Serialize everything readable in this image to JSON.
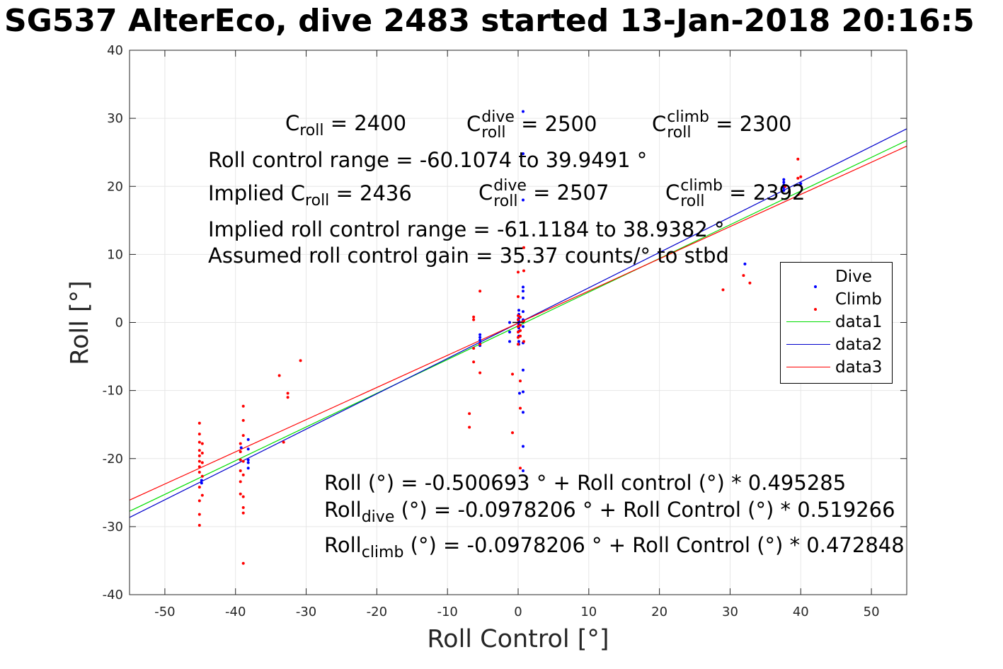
{
  "title": "SG537 AlterEco, dive 2483 started 13-Jan-2018 20:16:5",
  "colors": {
    "dive": "#0000ff",
    "climb": "#ff0000",
    "data1": "#00dd00",
    "data2": "#0000cc",
    "data3": "#ff0000"
  },
  "annotations": {
    "c_roll": {
      "label": "C",
      "sub": "roll",
      "value": " = 2400"
    },
    "c_roll_dive": {
      "label": "C",
      "sup": "dive",
      "sub": "roll",
      "value": " = 2500"
    },
    "c_roll_climb": {
      "label": "C",
      "sup": "climb",
      "sub": "roll",
      "value": " = 2300"
    },
    "roll_control_range": "Roll control range = -60.1074 to 39.9491 °",
    "implied_c_roll": {
      "label": "Implied C",
      "sub": "roll",
      "value": " = 2436"
    },
    "implied_c_roll_dive": {
      "label": "C",
      "sup": "dive",
      "sub": "roll",
      "value": " = 2507"
    },
    "implied_c_roll_climb": {
      "label": "C",
      "sup": "climb",
      "sub": "roll",
      "value": " = 2392"
    },
    "implied_range": "Implied roll control range = -61.1184 to 38.9382 °",
    "gain": "Assumed roll control gain = 35.37 counts/° to stbd",
    "fit_all": "Roll (°) = -0.500693 ° + Roll control (°) * 0.495285",
    "fit_dive": {
      "label": "Roll",
      "sub": "dive",
      "value": " (°) = -0.0978206 ° + Roll Control (°) * 0.519266"
    },
    "fit_climb": {
      "label": "Roll",
      "sub": "climb",
      "value": " (°) = -0.0978206 ° + Roll Control (°) * 0.472848"
    }
  },
  "legend": {
    "dive": "Dive",
    "climb": "Climb",
    "data1": "data1",
    "data2": "data2",
    "data3": "data3"
  },
  "chart_data": {
    "type": "scatter",
    "xlabel": "Roll Control [°]",
    "ylabel": "Roll [°]",
    "xlim": [
      -55,
      55
    ],
    "ylim": [
      -40,
      40
    ],
    "xticks": [
      -50,
      -40,
      -30,
      -20,
      -10,
      0,
      10,
      20,
      30,
      40,
      50
    ],
    "yticks": [
      -40,
      -30,
      -20,
      -10,
      0,
      10,
      20,
      30,
      40
    ],
    "grid": true,
    "legend_position": "right",
    "series": [
      {
        "name": "Dive",
        "mode": "markers",
        "points": [
          [
            -44.8,
            -23.2
          ],
          [
            -44.8,
            -23.6
          ],
          [
            -38.2,
            -17.2
          ],
          [
            -38.2,
            -18.6
          ],
          [
            -38.2,
            -20.2
          ],
          [
            -38.2,
            -20.6
          ],
          [
            -38.2,
            -21.4
          ],
          [
            -39.2,
            -18.4
          ],
          [
            -5.4,
            -1.8
          ],
          [
            -5.4,
            -2.2
          ],
          [
            -5.4,
            -2.6
          ],
          [
            -5.4,
            -3.0
          ],
          [
            -5.4,
            -3.4
          ],
          [
            -1.2,
            0.0
          ],
          [
            -1.2,
            -1.4
          ],
          [
            -1.2,
            -2.8
          ],
          [
            0.1,
            1.8
          ],
          [
            0.1,
            1.2
          ],
          [
            0.1,
            0.6
          ],
          [
            0.1,
            0.2
          ],
          [
            0.1,
            -0.3
          ],
          [
            0.1,
            -0.8
          ],
          [
            0.1,
            -1.3
          ],
          [
            0.1,
            -2.0
          ],
          [
            0.1,
            -2.8
          ],
          [
            0.1,
            -3.2
          ],
          [
            0.7,
            31.0
          ],
          [
            0.7,
            24.8
          ],
          [
            0.7,
            18.0
          ],
          [
            0.7,
            5.2
          ],
          [
            0.7,
            4.6
          ],
          [
            0.7,
            3.6
          ],
          [
            0.7,
            1.6
          ],
          [
            0.7,
            0.4
          ],
          [
            0.7,
            -0.6
          ],
          [
            0.7,
            -3.0
          ],
          [
            0.7,
            -7.0
          ],
          [
            0.7,
            -10.2
          ],
          [
            0.7,
            -13.2
          ],
          [
            0.7,
            -18.2
          ],
          [
            0.7,
            -21.8
          ],
          [
            0.2,
            -10.4
          ],
          [
            37.6,
            21.0
          ],
          [
            37.6,
            20.6
          ],
          [
            37.6,
            20.2
          ],
          [
            37.6,
            19.8
          ],
          [
            37.6,
            19.4
          ],
          [
            32.1,
            8.6
          ],
          [
            40.0,
            20.4
          ]
        ]
      },
      {
        "name": "Climb",
        "mode": "markers",
        "points": [
          [
            -45.1,
            -14.8
          ],
          [
            -45.1,
            -16.4
          ],
          [
            -45.1,
            -17.6
          ],
          [
            -45.1,
            -18.8
          ],
          [
            -45.1,
            -19.6
          ],
          [
            -45.1,
            -20.4
          ],
          [
            -45.1,
            -21.2
          ],
          [
            -45.1,
            -22.0
          ],
          [
            -45.1,
            -24.2
          ],
          [
            -45.1,
            -26.2
          ],
          [
            -45.1,
            -28.2
          ],
          [
            -45.1,
            -29.8
          ],
          [
            -44.7,
            -17.8
          ],
          [
            -44.7,
            -19.2
          ],
          [
            -44.7,
            -20.6
          ],
          [
            -44.7,
            -22.6
          ],
          [
            -44.7,
            -25.4
          ],
          [
            -39.3,
            -17.8
          ],
          [
            -39.3,
            -19.0
          ],
          [
            -39.3,
            -20.2
          ],
          [
            -39.3,
            -21.8
          ],
          [
            -39.3,
            -23.4
          ],
          [
            -39.3,
            -25.2
          ],
          [
            -38.9,
            -12.3
          ],
          [
            -38.9,
            -14.4
          ],
          [
            -38.9,
            -16.6
          ],
          [
            -38.9,
            -20.4
          ],
          [
            -38.9,
            -22.4
          ],
          [
            -38.9,
            -25.6
          ],
          [
            -38.9,
            -27.2
          ],
          [
            -38.9,
            -28.0
          ],
          [
            -38.9,
            -35.4
          ],
          [
            -33.8,
            -7.8
          ],
          [
            -33.2,
            -17.6
          ],
          [
            -32.6,
            -10.4
          ],
          [
            -32.6,
            -11.0
          ],
          [
            -30.8,
            -5.6
          ],
          [
            -6.3,
            0.8
          ],
          [
            -6.3,
            0.4
          ],
          [
            -6.3,
            -3.8
          ],
          [
            -6.3,
            -5.8
          ],
          [
            -6.9,
            -13.4
          ],
          [
            -6.9,
            -15.4
          ],
          [
            -5.4,
            4.6
          ],
          [
            -5.4,
            -7.4
          ],
          [
            -5.4,
            -3.2
          ],
          [
            -0.8,
            -7.6
          ],
          [
            -0.8,
            -16.2
          ],
          [
            0.0,
            7.4
          ],
          [
            0.0,
            3.8
          ],
          [
            0.0,
            1.0
          ],
          [
            0.0,
            0.4
          ],
          [
            0.0,
            -0.6
          ],
          [
            0.0,
            -1.4
          ],
          [
            0.0,
            -2.2
          ],
          [
            0.0,
            -3.2
          ],
          [
            0.3,
            0.8
          ],
          [
            0.3,
            -0.4
          ],
          [
            0.3,
            -1.2
          ],
          [
            0.3,
            -2.0
          ],
          [
            0.3,
            -8.6
          ],
          [
            0.3,
            -12.6
          ],
          [
            0.3,
            -21.4
          ],
          [
            0.8,
            11.0
          ],
          [
            0.8,
            7.6
          ],
          [
            0.8,
            0.2
          ],
          [
            0.8,
            -2.8
          ],
          [
            29.0,
            4.8
          ],
          [
            31.9,
            6.9
          ],
          [
            32.8,
            5.8
          ],
          [
            39.6,
            24.0
          ],
          [
            39.6,
            21.2
          ],
          [
            40.0,
            21.4
          ],
          [
            37.8,
            20.0
          ]
        ]
      },
      {
        "name": "data1",
        "mode": "line",
        "slope": 0.495285,
        "intercept": -0.500693
      },
      {
        "name": "data2",
        "mode": "line",
        "slope": 0.519266,
        "intercept": -0.0978206
      },
      {
        "name": "data3",
        "mode": "line",
        "slope": 0.472848,
        "intercept": -0.0978206
      }
    ]
  }
}
